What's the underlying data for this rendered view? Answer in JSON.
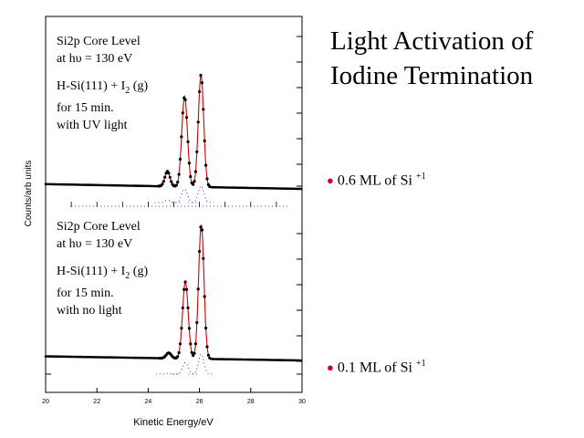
{
  "slide": {
    "title_line1": "Light Activation of",
    "title_line2": "Iodine Termination"
  },
  "panels": [
    {
      "label_lines": [
        "Si2p Core Level",
        "at hυ = 130 eV",
        "",
        "H-Si(111) + I",
        "for 15 min.",
        "with UV light"
      ],
      "gas_subscript": "2",
      "gas_suffix": " (g)",
      "note_value": "0.6 ML of Si",
      "note_sup": "+1"
    },
    {
      "label_lines": [
        "Si2p Core Level",
        "at hυ = 130 eV",
        "",
        "H-Si(111) + I",
        "for 15 min.",
        "with no light"
      ],
      "gas_subscript": "2",
      "gas_suffix": " (g)",
      "note_value": "0.1 ML of Si",
      "note_sup": "+1"
    }
  ],
  "chart_data": {
    "type": "line",
    "xlabel": "Kinetic Energy/eV",
    "ylabel": "Counts/arb units",
    "xlim": [
      20,
      30
    ],
    "x_ticks": [
      20,
      22,
      24,
      26,
      28,
      30
    ],
    "series_colors": {
      "data_points": "#000000",
      "fit": "#cc0000",
      "components": "#0000aa"
    },
    "panels": [
      {
        "name": "UV light",
        "background": {
          "start": 0.055,
          "end": 0.02
        },
        "peaks": [
          {
            "center": 24.75,
            "height": 0.11,
            "width": 0.1
          },
          {
            "center": 25.42,
            "height": 0.66,
            "width": 0.11
          },
          {
            "center": 26.06,
            "height": 0.82,
            "width": 0.105
          }
        ]
      },
      {
        "name": "no light",
        "background": {
          "start": 0.05,
          "end": 0.02
        },
        "peaks": [
          {
            "center": 24.8,
            "height": 0.04,
            "width": 0.1
          },
          {
            "center": 25.45,
            "height": 0.56,
            "width": 0.11
          },
          {
            "center": 26.07,
            "height": 0.98,
            "width": 0.105
          }
        ]
      }
    ]
  }
}
